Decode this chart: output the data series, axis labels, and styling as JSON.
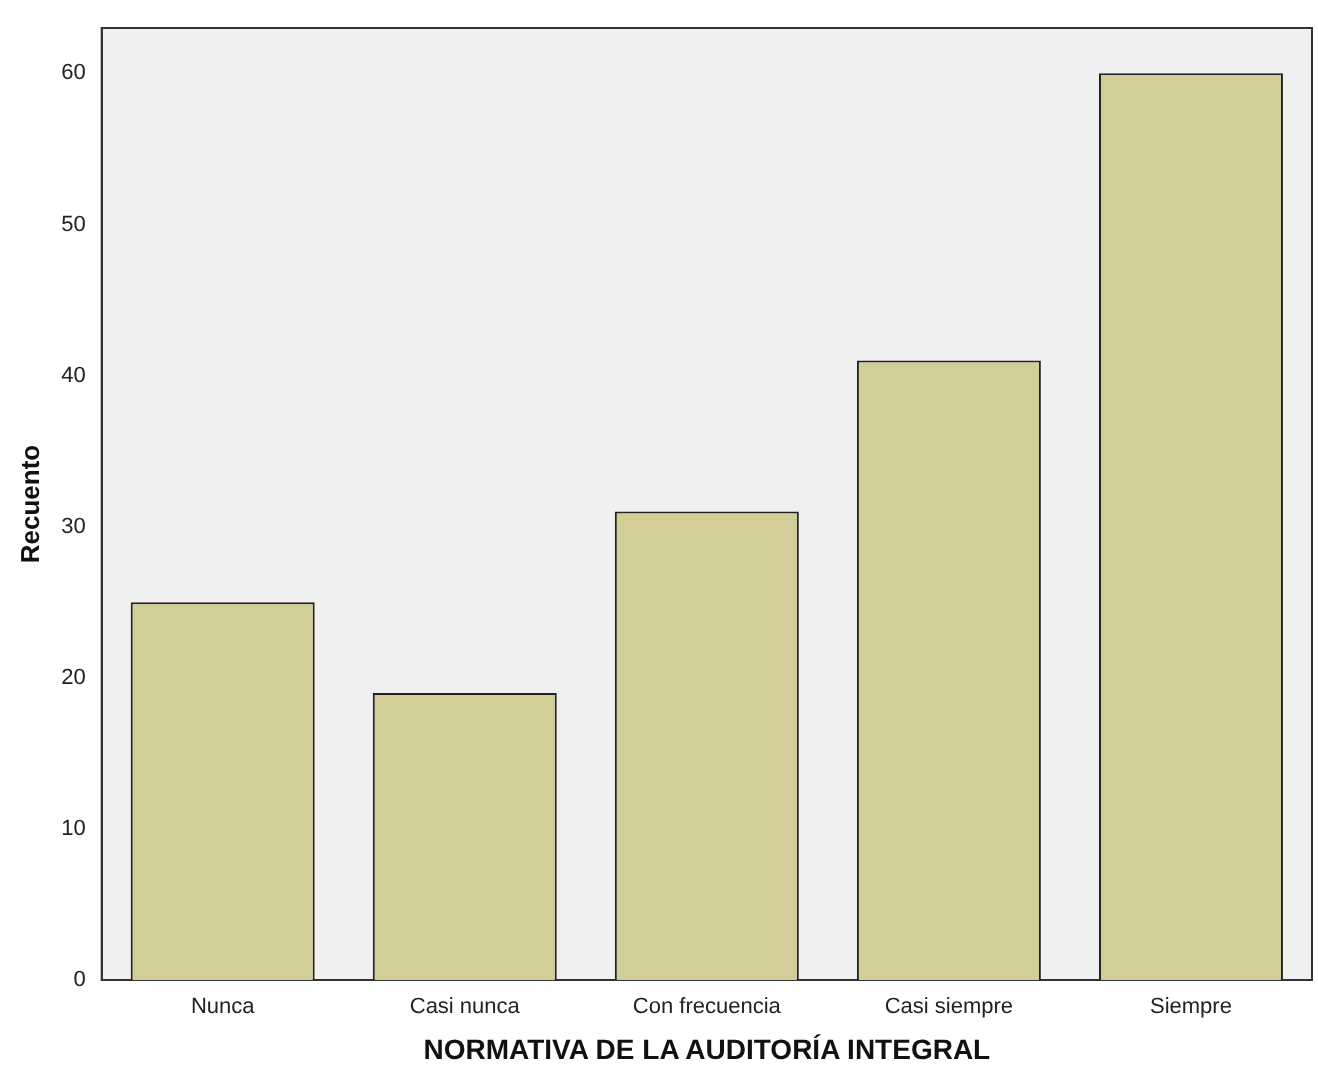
{
  "chart_data": {
    "type": "bar",
    "xlabel": "NORMATIVA DE LA AUDITORÍA INTEGRAL",
    "ylabel": "Recuento",
    "categories": [
      "Nunca",
      "Casi nunca",
      "Con frecuencia",
      "Casi siempre",
      "Siempre"
    ],
    "values": [
      25,
      19,
      31,
      41,
      60
    ],
    "color": "#d3ce97",
    "ylim": [
      0,
      63
    ],
    "yticks": [
      0,
      10,
      20,
      30,
      40,
      50,
      60
    ],
    "grid": false,
    "legend": false
  }
}
